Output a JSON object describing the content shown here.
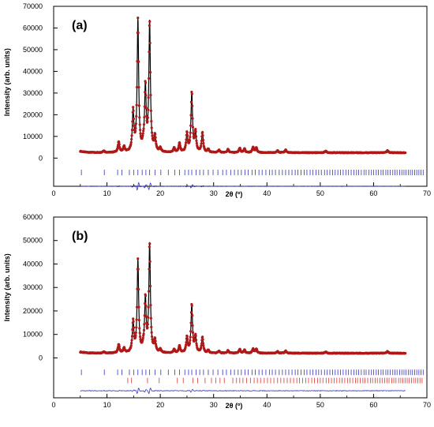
{
  "chart_data": [
    {
      "type": "line",
      "panel_label": "(a)",
      "xlabel": "2θ (º)",
      "ylabel": "Intensity (arb. units)",
      "xlim": [
        0,
        70
      ],
      "ylim": [
        -13000,
        70000
      ],
      "x_ticks": [
        0,
        10,
        20,
        30,
        40,
        50,
        60,
        70
      ],
      "y_ticks": [
        0,
        10000,
        20000,
        30000,
        40000,
        50000,
        60000,
        70000
      ],
      "pattern_range": [
        5,
        66
      ],
      "background": 2500,
      "peaks": [
        {
          "x": 9.4,
          "y": 900
        },
        {
          "x": 12.2,
          "y": 4800
        },
        {
          "x": 13.2,
          "y": 2500
        },
        {
          "x": 14.9,
          "y": 18500
        },
        {
          "x": 15.8,
          "y": 60500
        },
        {
          "x": 16.8,
          "y": 2000
        },
        {
          "x": 17.2,
          "y": 29500
        },
        {
          "x": 18.0,
          "y": 59500
        },
        {
          "x": 19.0,
          "y": 6800
        },
        {
          "x": 20.0,
          "y": 1800
        },
        {
          "x": 22.6,
          "y": 2000
        },
        {
          "x": 23.6,
          "y": 4200
        },
        {
          "x": 25.0,
          "y": 8500
        },
        {
          "x": 25.9,
          "y": 27500
        },
        {
          "x": 26.6,
          "y": 9000
        },
        {
          "x": 27.9,
          "y": 9200
        },
        {
          "x": 29.0,
          "y": 1500
        },
        {
          "x": 31.0,
          "y": 1200
        },
        {
          "x": 32.7,
          "y": 1500
        },
        {
          "x": 34.9,
          "y": 2000
        },
        {
          "x": 35.8,
          "y": 1700
        },
        {
          "x": 37.4,
          "y": 2500
        },
        {
          "x": 38.0,
          "y": 2200
        },
        {
          "x": 42.0,
          "y": 1000
        },
        {
          "x": 43.5,
          "y": 1300
        },
        {
          "x": 51.0,
          "y": 800
        },
        {
          "x": 62.6,
          "y": 1000
        }
      ],
      "reflection_rows": [
        {
          "color": "#3333bb",
          "y_center": -0.08,
          "ticks": [
            5.2,
            9.5,
            12.0,
            12.8,
            14.2,
            15.0,
            15.8,
            16.6,
            17.3,
            18.0,
            19.0,
            20.1,
            21.5,
            22.7,
            23.6,
            24.6,
            25.3,
            25.9,
            26.7,
            27.4,
            28.1,
            29.0,
            29.9,
            30.8,
            31.7,
            32.4,
            33.2,
            33.9,
            34.6,
            35.2,
            35.9,
            36.5,
            37.2,
            37.8,
            38.5,
            39.1,
            39.8,
            40.5,
            41.0,
            41.6,
            42.3,
            42.9,
            43.5,
            44.1,
            44.7,
            45.3,
            45.8,
            46.4,
            47.0,
            47.5,
            48.1,
            48.6,
            49.2,
            49.7,
            50.2,
            50.8,
            51.3,
            51.8,
            52.3,
            52.8,
            53.3,
            53.8,
            54.3,
            54.8,
            55.3,
            55.8,
            56.3,
            56.8,
            57.2,
            57.7,
            58.2,
            58.6,
            59.1,
            59.6,
            60.0,
            60.5,
            60.9,
            61.4,
            61.8,
            62.3,
            62.7,
            63.1,
            63.6,
            64.0,
            64.4,
            64.9,
            65.3,
            65.7,
            66.1,
            66.5,
            66.9,
            67.3,
            67.7,
            68.1,
            68.5,
            68.9,
            69.3
          ]
        }
      ],
      "difference_y": -13000
    },
    {
      "type": "line",
      "panel_label": "(b)",
      "xlabel": "2θ (º)",
      "ylabel": "Intensity (arb. units)",
      "xlim": [
        0,
        70
      ],
      "ylim": [
        -17000,
        60000
      ],
      "x_ticks": [
        0,
        10,
        20,
        30,
        40,
        50,
        60,
        70
      ],
      "y_ticks": [
        0,
        10000,
        20000,
        30000,
        40000,
        50000,
        60000
      ],
      "pattern_range": [
        5,
        66
      ],
      "background": 2000,
      "peaks": [
        {
          "x": 9.4,
          "y": 700
        },
        {
          "x": 12.2,
          "y": 3600
        },
        {
          "x": 13.2,
          "y": 2000
        },
        {
          "x": 14.9,
          "y": 13000
        },
        {
          "x": 15.8,
          "y": 39000
        },
        {
          "x": 16.8,
          "y": 1500
        },
        {
          "x": 17.2,
          "y": 22500
        },
        {
          "x": 18.0,
          "y": 46000
        },
        {
          "x": 19.0,
          "y": 5000
        },
        {
          "x": 20.0,
          "y": 1400
        },
        {
          "x": 22.6,
          "y": 1500
        },
        {
          "x": 23.6,
          "y": 3000
        },
        {
          "x": 25.0,
          "y": 6500
        },
        {
          "x": 25.9,
          "y": 20500
        },
        {
          "x": 26.6,
          "y": 6800
        },
        {
          "x": 27.9,
          "y": 6800
        },
        {
          "x": 29.0,
          "y": 1200
        },
        {
          "x": 31.0,
          "y": 900
        },
        {
          "x": 32.7,
          "y": 1100
        },
        {
          "x": 34.9,
          "y": 1600
        },
        {
          "x": 35.8,
          "y": 1300
        },
        {
          "x": 37.4,
          "y": 1900
        },
        {
          "x": 38.0,
          "y": 1700
        },
        {
          "x": 42.0,
          "y": 800
        },
        {
          "x": 43.5,
          "y": 1000
        },
        {
          "x": 51.0,
          "y": 600
        },
        {
          "x": 62.6,
          "y": 800
        }
      ],
      "reflection_rows": [
        {
          "color": "#3333bb",
          "y_center": -0.08,
          "ticks": [
            5.2,
            9.5,
            12.0,
            12.8,
            14.2,
            15.0,
            15.8,
            16.6,
            17.3,
            18.0,
            19.0,
            20.1,
            21.5,
            22.7,
            23.6,
            24.6,
            25.3,
            25.9,
            26.7,
            27.4,
            28.1,
            29.0,
            29.9,
            30.8,
            31.7,
            32.4,
            33.2,
            33.9,
            34.6,
            35.2,
            35.9,
            36.5,
            37.2,
            37.8,
            38.5,
            39.1,
            39.8,
            40.5,
            41.0,
            41.6,
            42.3,
            42.9,
            43.5,
            44.1,
            44.7,
            45.3,
            45.8,
            46.4,
            47.0,
            47.5,
            48.1,
            48.6,
            49.2,
            49.7,
            50.2,
            50.8,
            51.3,
            51.8,
            52.3,
            52.8,
            53.3,
            53.8,
            54.3,
            54.8,
            55.3,
            55.8,
            56.3,
            56.8,
            57.2,
            57.7,
            58.2,
            58.6,
            59.1,
            59.6,
            60.0,
            60.5,
            60.9,
            61.4,
            61.8,
            62.3,
            62.7,
            63.1,
            63.6,
            64.0,
            64.4,
            64.9,
            65.3,
            65.7,
            66.1,
            66.5,
            66.9,
            67.3,
            67.7,
            68.1,
            68.5,
            68.9,
            69.3
          ]
        },
        {
          "color": "#dd3333",
          "y_center": -0.125,
          "ticks": [
            13.9,
            14.6,
            17.6,
            19.8,
            23.2,
            24.3,
            26.1,
            27.0,
            28.4,
            29.6,
            30.4,
            31.2,
            32.0,
            33.6,
            34.3,
            34.9,
            35.5,
            36.2,
            36.9,
            37.6,
            38.2,
            38.8,
            39.5,
            40.1,
            40.7,
            41.3,
            42.0,
            42.6,
            43.2,
            43.8,
            44.4,
            45.0,
            45.6,
            46.1,
            46.7,
            47.3,
            47.8,
            48.4,
            48.9,
            49.5,
            50.0,
            50.5,
            51.1,
            51.6,
            52.1,
            52.6,
            53.1,
            53.6,
            54.1,
            54.6,
            55.1,
            55.6,
            56.1,
            56.6,
            57.0,
            57.5,
            58.0,
            58.4,
            58.9,
            59.4,
            59.8,
            60.3,
            60.7,
            61.2,
            61.6,
            62.1,
            62.5,
            62.9,
            63.4,
            63.8,
            64.2,
            64.7,
            65.1,
            65.5,
            65.9,
            66.3,
            66.7,
            67.1,
            67.5,
            67.9,
            68.3,
            68.7,
            69.1
          ]
        }
      ],
      "difference_y": -14000
    }
  ]
}
